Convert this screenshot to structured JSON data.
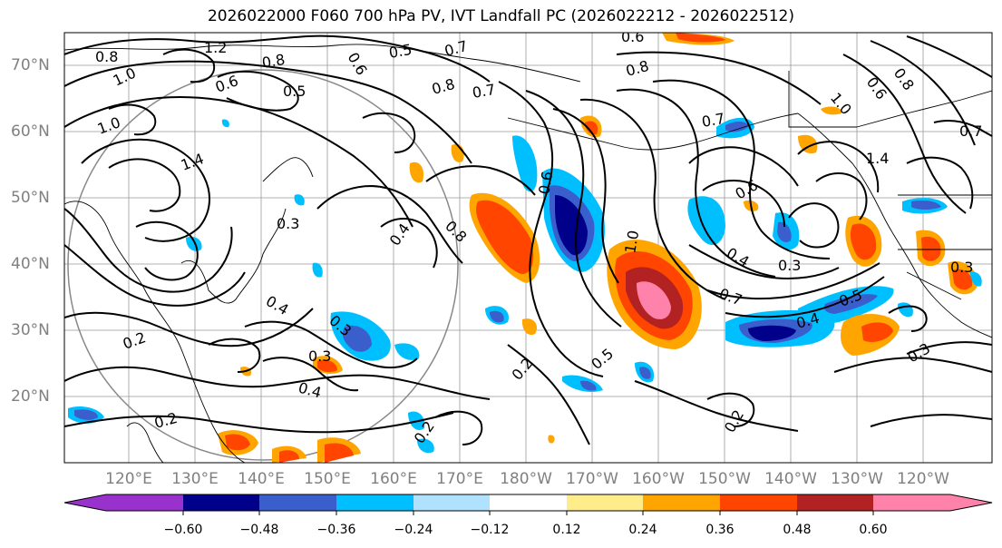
{
  "title": "2026022000 F060 700 hPa PV, IVT Landfall PC (2026022212 - 2026022512)",
  "lat_labels": [
    "70°N",
    "60°N",
    "50°N",
    "40°N",
    "30°N",
    "20°N"
  ],
  "lon_labels": [
    "120°E",
    "130°E",
    "140°E",
    "150°E",
    "160°E",
    "170°E",
    "180°W",
    "170°W",
    "160°W",
    "150°W",
    "140°W",
    "130°W",
    "120°W"
  ],
  "colorbar": {
    "ticks": [
      "−0.60",
      "−0.48",
      "−0.36",
      "−0.24",
      "−0.12",
      "0.12",
      "0.24",
      "0.36",
      "0.48",
      "0.60"
    ],
    "colors": [
      "#9932cc",
      "#00008b",
      "#3a5fcd",
      "#00bfff",
      "#b0e2ff",
      "#ffffff",
      "#ffec8b",
      "#ffa500",
      "#ff4500",
      "#b22222",
      "#ff82ab",
      "#ff82ab"
    ]
  },
  "contour_labels": [
    "1.2",
    "0.8",
    "1.0",
    "0.6",
    "0.5",
    "0.8",
    "0.5",
    "0.7",
    "0.8",
    "0.7",
    "0.6",
    "0.8",
    "0.6",
    "0.7",
    "1.0",
    "1.4",
    "1.4",
    "0.3",
    "0.4",
    "0.8",
    "0.2",
    "0.3",
    "0.4",
    "0.3",
    "0.4",
    "0.2",
    "0.2",
    "0.2",
    "0.5",
    "0.2",
    "1.0",
    "0.7",
    "0.4",
    "0.3",
    "0.6",
    "0.4",
    "0.3",
    "0.5",
    "0.3",
    "0.7",
    "0.6",
    "0.8",
    "1.0",
    "0.6"
  ]
}
